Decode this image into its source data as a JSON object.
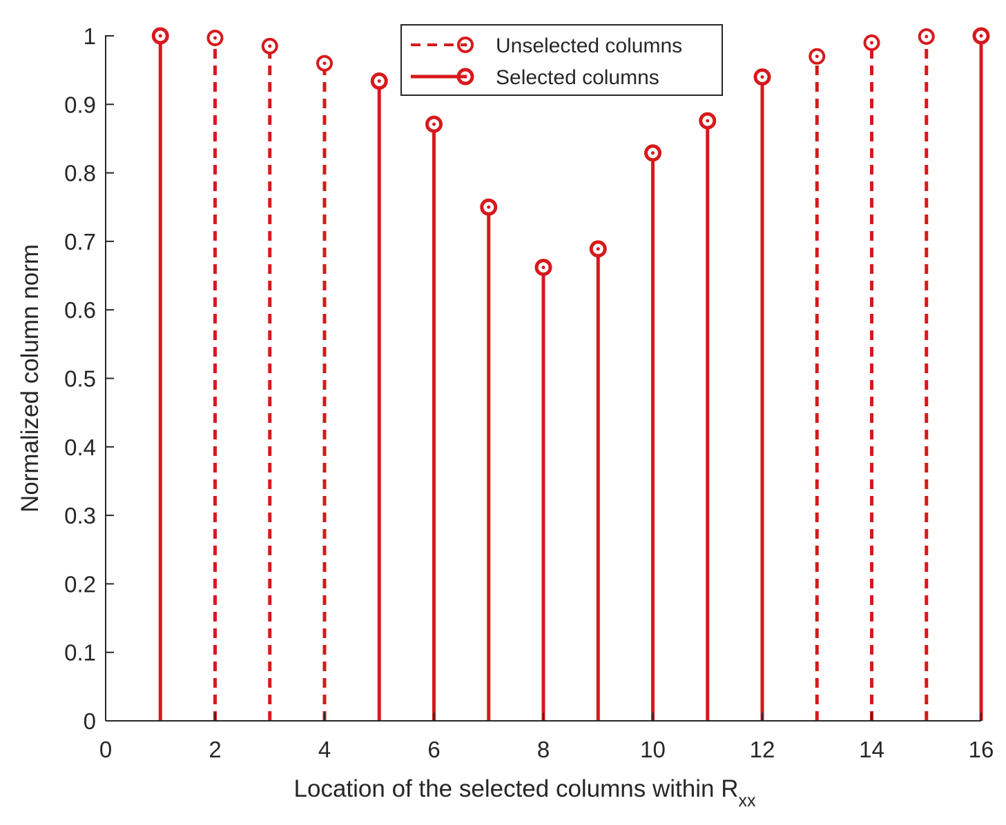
{
  "chart_data": {
    "type": "stem",
    "xlabel": "Location of the selected columns within R",
    "xlabel_subscript": "xx",
    "ylabel": "Normalized column norm",
    "xlim": [
      0,
      16
    ],
    "ylim": [
      0,
      1
    ],
    "xticks": [
      "0",
      "2",
      "4",
      "6",
      "8",
      "10",
      "12",
      "14",
      "16"
    ],
    "yticks": [
      "0",
      "0.1",
      "0.2",
      "0.3",
      "0.4",
      "0.5",
      "0.6",
      "0.7",
      "0.8",
      "0.9",
      "1"
    ],
    "grid": false,
    "legend_position": "top-center",
    "color": "#d7191c",
    "series": [
      {
        "name": "Unselected columns",
        "line_style": "dashed",
        "marker": "circle",
        "x": [
          2,
          3,
          4,
          13,
          14,
          15
        ],
        "values": [
          0.997,
          0.985,
          0.96,
          0.97,
          0.99,
          0.999
        ]
      },
      {
        "name": "Selected columns",
        "line_style": "solid",
        "marker": "circle",
        "x": [
          1,
          5,
          6,
          7,
          8,
          9,
          10,
          11,
          12,
          16
        ],
        "values": [
          1.0,
          0.934,
          0.871,
          0.75,
          0.662,
          0.689,
          0.829,
          0.876,
          0.94,
          1.0
        ]
      }
    ]
  }
}
